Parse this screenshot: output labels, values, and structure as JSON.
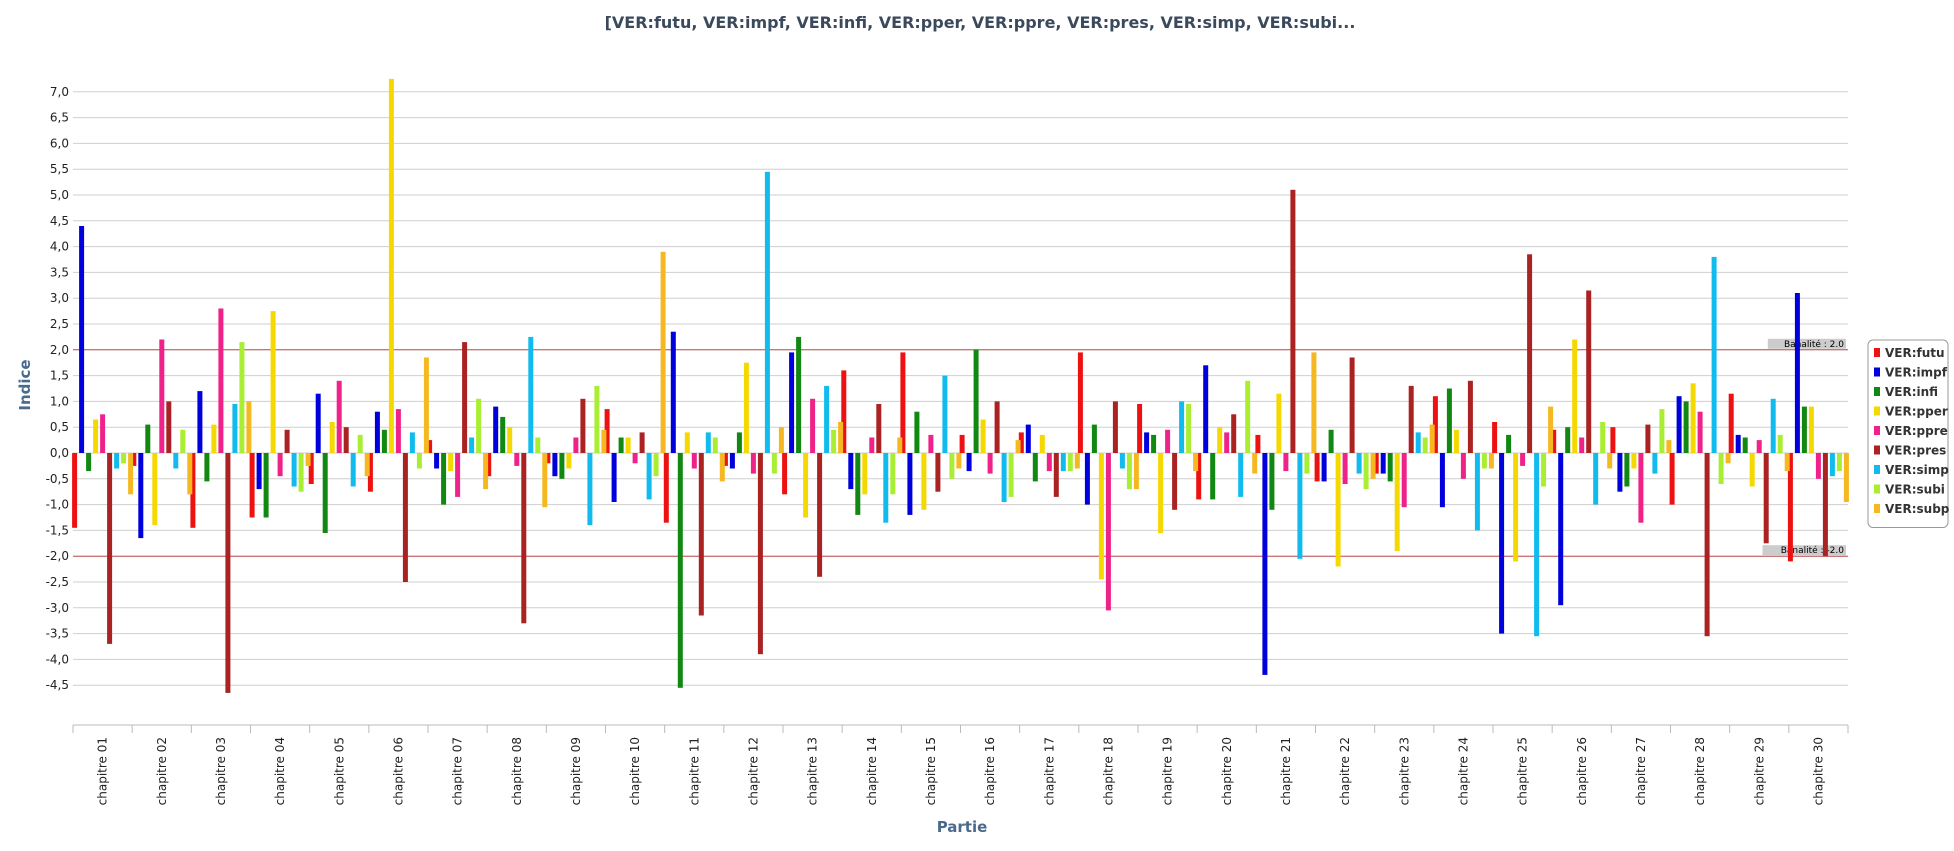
{
  "chart_data": {
    "type": "bar",
    "title": "[VER:futu, VER:impf, VER:infi, VER:pper, VER:ppre, VER:pres, VER:simp, VER:subi...",
    "xlabel": "Partie",
    "ylabel": "Indice",
    "ylim": [
      -5.3,
      7.5
    ],
    "yticks": [
      7.0,
      6.5,
      6.0,
      5.5,
      5.0,
      4.5,
      4.0,
      3.5,
      3.0,
      2.5,
      2.0,
      1.5,
      1.0,
      0.5,
      0.0,
      -0.5,
      -1.0,
      -1.5,
      -2.0,
      -2.5,
      -3.0,
      -3.5,
      -4.0,
      -4.5
    ],
    "ytick_labels": [
      "7,0",
      "6,5",
      "6,0",
      "5,5",
      "5,0",
      "4,5",
      "4,0",
      "3,5",
      "3,0",
      "2,5",
      "2,0",
      "1,5",
      "1,0",
      "0,5",
      "0,0",
      "-0,5",
      "-1,0",
      "-1,5",
      "-2,0",
      "-2,5",
      "-3,0",
      "-3,5",
      "-4,0",
      "-4,5"
    ],
    "grid": true,
    "legend_position": "right",
    "categories": [
      "chapitre 01",
      "chapitre 02",
      "chapitre 03",
      "chapitre 04",
      "chapitre 05",
      "chapitre 06",
      "chapitre 07",
      "chapitre 08",
      "chapitre 09",
      "chapitre 10",
      "chapitre 11",
      "chapitre 12",
      "chapitre 13",
      "chapitre 14",
      "chapitre 15",
      "chapitre 16",
      "chapitre 17",
      "chapitre 18",
      "chapitre 19",
      "chapitre 20",
      "chapitre 21",
      "chapitre 22",
      "chapitre 23",
      "chapitre 24",
      "chapitre 25",
      "chapitre 26",
      "chapitre 27",
      "chapitre 28",
      "chapitre 29",
      "chapitre 30"
    ],
    "reference_lines": [
      {
        "value": 2.0,
        "label": "Banalité : 2.0",
        "color": "#c05050"
      },
      {
        "value": -2.0,
        "label": "Banalité : -2.0",
        "color": "#c05050"
      }
    ],
    "series": [
      {
        "name": "VER:futu",
        "color": "#ee1111",
        "values": [
          -1.45,
          -0.25,
          -1.45,
          -1.25,
          -0.6,
          -0.75,
          0.25,
          -0.45,
          -0.2,
          0.85,
          -1.35,
          -0.25,
          -0.8,
          1.6,
          1.95,
          0.35,
          0.4,
          1.95,
          0.95,
          -0.9,
          0.35,
          -0.55,
          -0.4,
          1.1,
          0.6,
          0.45,
          0.5,
          -1.0,
          1.15,
          -2.1
        ]
      },
      {
        "name": "VER:impf",
        "color": "#0000dd",
        "values": [
          4.4,
          -1.65,
          1.2,
          -0.7,
          1.15,
          0.8,
          -0.3,
          0.9,
          -0.45,
          -0.95,
          2.35,
          -0.3,
          1.95,
          -0.7,
          -1.2,
          -0.35,
          0.55,
          -1.0,
          0.4,
          1.7,
          -4.3,
          -0.55,
          -0.4,
          -1.05,
          -3.5,
          -2.95,
          -0.75,
          1.1,
          0.35,
          3.1
        ]
      },
      {
        "name": "VER:infi",
        "color": "#118811",
        "values": [
          -0.35,
          0.55,
          -0.55,
          -1.25,
          -1.55,
          0.45,
          -1.0,
          0.7,
          -0.5,
          0.3,
          -4.55,
          0.4,
          2.25,
          -1.2,
          0.8,
          2.0,
          -0.55,
          0.55,
          0.35,
          -0.9,
          -1.1,
          0.45,
          -0.55,
          1.25,
          0.35,
          0.5,
          -0.65,
          1.0,
          0.3,
          0.9
        ]
      },
      {
        "name": "VER:pper",
        "color": "#f5d800",
        "values": [
          0.65,
          -1.4,
          0.55,
          2.75,
          0.6,
          7.25,
          -0.35,
          0.5,
          -0.3,
          0.3,
          0.4,
          1.75,
          -1.25,
          -0.8,
          -1.1,
          0.65,
          0.35,
          -2.45,
          -1.55,
          0.5,
          1.15,
          -2.2,
          -1.9,
          0.45,
          -2.1,
          2.2,
          -0.3,
          1.35,
          -0.65,
          0.9
        ]
      },
      {
        "name": "VER:ppre",
        "color": "#ee2288",
        "values": [
          0.75,
          2.2,
          2.8,
          -0.45,
          1.4,
          0.85,
          -0.85,
          -0.25,
          0.3,
          -0.2,
          -0.3,
          -0.4,
          1.05,
          0.3,
          0.35,
          -0.4,
          -0.35,
          -3.05,
          0.45,
          0.4,
          -0.35,
          -0.6,
          -1.05,
          -0.5,
          -0.25,
          0.3,
          -1.35,
          0.8,
          0.25,
          -0.5
        ]
      },
      {
        "name": "VER:pres",
        "color": "#aa2222",
        "values": [
          -3.7,
          1.0,
          -4.65,
          0.45,
          0.5,
          -2.5,
          2.15,
          -3.3,
          1.05,
          0.4,
          -3.15,
          -3.9,
          -2.4,
          0.95,
          -0.75,
          1.0,
          -0.85,
          1.0,
          -1.1,
          0.75,
          5.1,
          1.85,
          1.3,
          1.4,
          3.85,
          3.15,
          0.55,
          -3.55,
          -1.75,
          -2.0
        ]
      },
      {
        "name": "VER:simp",
        "color": "#11bbee",
        "values": [
          -0.3,
          -0.3,
          0.95,
          -0.65,
          -0.65,
          0.4,
          0.3,
          2.25,
          -1.4,
          -0.9,
          0.4,
          5.45,
          1.3,
          -1.35,
          1.5,
          -0.95,
          -0.35,
          -0.3,
          1.0,
          -0.85,
          -2.05,
          -0.4,
          0.4,
          -1.5,
          -3.55,
          -1.0,
          -0.4,
          3.8,
          1.05,
          -0.45
        ]
      },
      {
        "name": "VER:subi",
        "color": "#aaee33",
        "values": [
          -0.2,
          0.45,
          2.15,
          -0.75,
          0.35,
          -0.3,
          1.05,
          0.3,
          1.3,
          -0.45,
          0.3,
          -0.4,
          0.45,
          -0.8,
          -0.5,
          -0.85,
          -0.35,
          -0.7,
          0.95,
          1.4,
          -0.4,
          -0.7,
          0.3,
          -0.3,
          -0.65,
          0.6,
          0.85,
          -0.6,
          0.35,
          -0.35
        ]
      },
      {
        "name": "VER:subp",
        "color": "#f5b820",
        "values": [
          -0.8,
          -0.8,
          1.0,
          -0.25,
          -0.45,
          1.85,
          -0.7,
          -1.05,
          0.45,
          3.9,
          -0.55,
          0.5,
          0.6,
          0.3,
          -0.3,
          0.25,
          -0.3,
          -0.7,
          -0.35,
          -0.4,
          1.95,
          -0.5,
          0.55,
          -0.3,
          0.9,
          -0.3,
          0.25,
          -0.2,
          -0.35,
          -0.95
        ]
      }
    ]
  }
}
